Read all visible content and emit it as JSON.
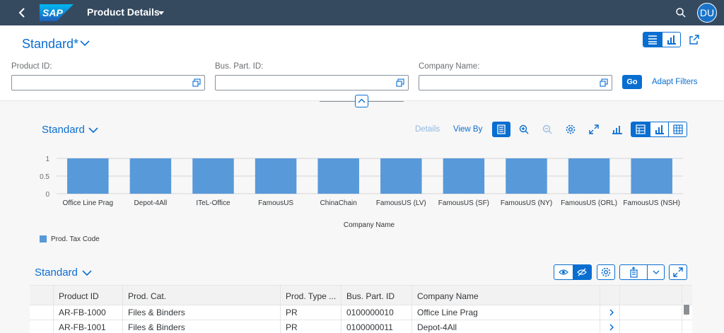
{
  "shell": {
    "logo": "SAP",
    "title": "Product Details",
    "avatar": "DU"
  },
  "page": {
    "variant": "Standard*"
  },
  "filters": {
    "product_id_label": "Product ID:",
    "bus_part_id_label": "Bus. Part. ID:",
    "company_name_label": "Company Name:",
    "go_label": "Go",
    "adapt_label": "Adapt Filters"
  },
  "chart_toolbar": {
    "variant": "Standard",
    "details": "Details",
    "view_by": "View By"
  },
  "chart_data": {
    "type": "bar",
    "categories": [
      "Office Line Prag",
      "Depot-4All",
      "ITeL-Office",
      "FamousUS",
      "ChinaChain",
      "FamousUS (LV)",
      "FamousUS (SF)",
      "FamousUS (NY)",
      "FamousUS (ORL)",
      "FamousUS (NSH)"
    ],
    "series": [
      {
        "name": "Prod. Tax Code",
        "values": [
          1,
          1,
          1,
          1,
          1,
          1,
          1,
          1,
          1,
          1
        ],
        "color": "#5899da"
      }
    ],
    "xlabel": "Company Name",
    "ylabel": "",
    "yticks": [
      "1",
      "0.5",
      "0"
    ],
    "ylim": [
      0,
      1
    ],
    "grid": true,
    "legend": "bottom-left"
  },
  "table": {
    "variant": "Standard",
    "columns": [
      "Product ID",
      "Prod. Cat.",
      "Prod. Type ...",
      "Bus. Part. ID",
      "Company Name"
    ],
    "rows": [
      [
        "AR-FB-1000",
        "Files & Binders",
        "PR",
        "0100000010",
        "Office Line Prag"
      ],
      [
        "AR-FB-1001",
        "Files & Binders",
        "PR",
        "0100000011",
        "Depot-4All"
      ]
    ]
  },
  "colors": {
    "shell": "#354a5f",
    "accent": "#0a6ed1",
    "bar": "#5899da"
  }
}
